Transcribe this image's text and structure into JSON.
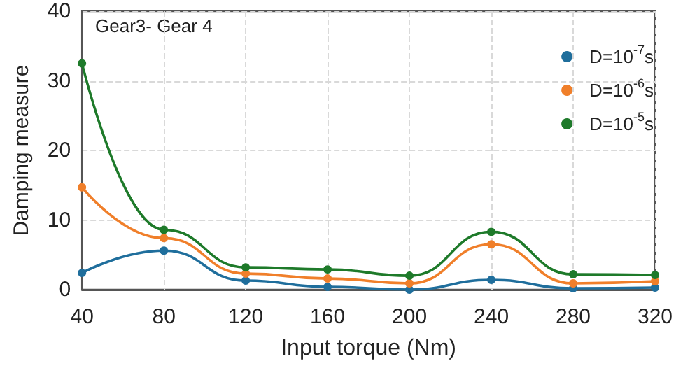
{
  "chart_data": {
    "type": "line",
    "xlabel": "Input torque (Nm)",
    "ylabel": "Damping measure",
    "annotations": [
      "Gear3- Gear 4"
    ],
    "x": [
      40,
      80,
      120,
      160,
      200,
      240,
      280,
      320
    ],
    "series": [
      {
        "name": "D=10$^{-7}$s",
        "color": "#1f6e9c",
        "values": [
          2.4,
          5.6,
          1.3,
          0.4,
          0,
          1.4,
          0.2,
          0.3
        ]
      },
      {
        "name": "D=10$^{-6}$s",
        "color": "#f07f2a",
        "values": [
          14.7,
          7.4,
          2.3,
          1.6,
          0.9,
          6.5,
          0.9,
          1.2
        ]
      },
      {
        "name": "D=10$^{-5}$s",
        "color": "#1e7a2a",
        "values": [
          32.5,
          8.6,
          3.2,
          2.9,
          2.0,
          8.3,
          2.2,
          2.1
        ]
      }
    ],
    "xlim": [
      40,
      320
    ],
    "xticks": [
      40,
      80,
      120,
      160,
      200,
      240,
      280,
      320
    ],
    "ylim": [
      0,
      40
    ],
    "yticks": [
      0,
      10,
      20,
      30,
      40
    ],
    "grid": true,
    "legend": "top right",
    "marker": "circle",
    "line_style": "solid"
  }
}
